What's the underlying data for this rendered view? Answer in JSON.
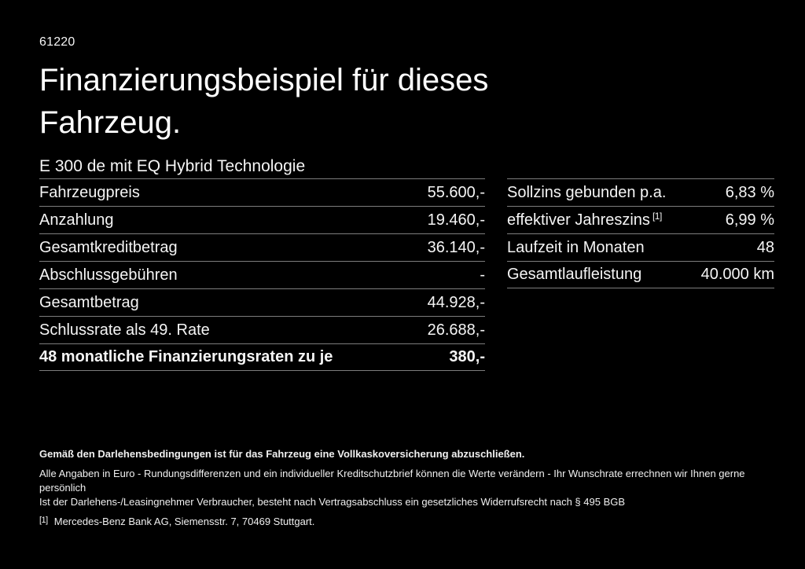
{
  "page": {
    "background": "#000000",
    "text_color": "#ffffff",
    "divider_color": "#7d7d7d"
  },
  "header": {
    "doc_code": "61220",
    "title_line1": "Finanzierungsbeispiel für dieses",
    "title_line2": "Fahrzeug.",
    "subtitle": "E 300 de mit EQ Hybrid Technologie"
  },
  "finance_table": {
    "rows": [
      {
        "label": "Fahrzeugpreis",
        "value": "55.600,-"
      },
      {
        "label": "Anzahlung",
        "value": "19.460,-"
      },
      {
        "label": "Gesamtkreditbetrag",
        "value": "36.140,-"
      },
      {
        "label": "Abschlussgebühren",
        "value": "-"
      },
      {
        "label": "Gesamtbetrag",
        "value": "44.928,-"
      },
      {
        "label": "Schlussrate als 49. Rate",
        "value": "26.688,-"
      },
      {
        "label": "48 monatliche Finanzierungsraten zu je",
        "value": "380,-",
        "bold": true
      }
    ]
  },
  "conditions_table": {
    "rows": [
      {
        "label": "Sollzins gebunden p.a.",
        "value": "6,83 %"
      },
      {
        "label": "effektiver Jahreszins",
        "footnote_ref": "[1]",
        "value": "6,99 %"
      },
      {
        "label": "Laufzeit in Monaten",
        "value": "48"
      },
      {
        "label": "Gesamtlaufleistung",
        "value": "40.000 km"
      }
    ]
  },
  "footer": {
    "bold_note": "Gemäß den Darlehensbedingungen ist für das Fahrzeug eine Vollkaskoversicherung abzuschließen.",
    "note1": "Alle Angaben in Euro - Rundungsdifferenzen und ein individueller Kreditschutzbrief können die Werte verändern - Ihr Wunschrate errechnen wir Ihnen gerne persönlich",
    "note2": "Ist der Darlehens-/Leasingnehmer Verbraucher, besteht nach Vertragsabschluss ein gesetzliches Widerrufsrecht nach § 495 BGB",
    "footnote_marker": "[1]",
    "footnote_text": "Mercedes-Benz Bank AG, Siemensstr. 7, 70469 Stuttgart."
  }
}
